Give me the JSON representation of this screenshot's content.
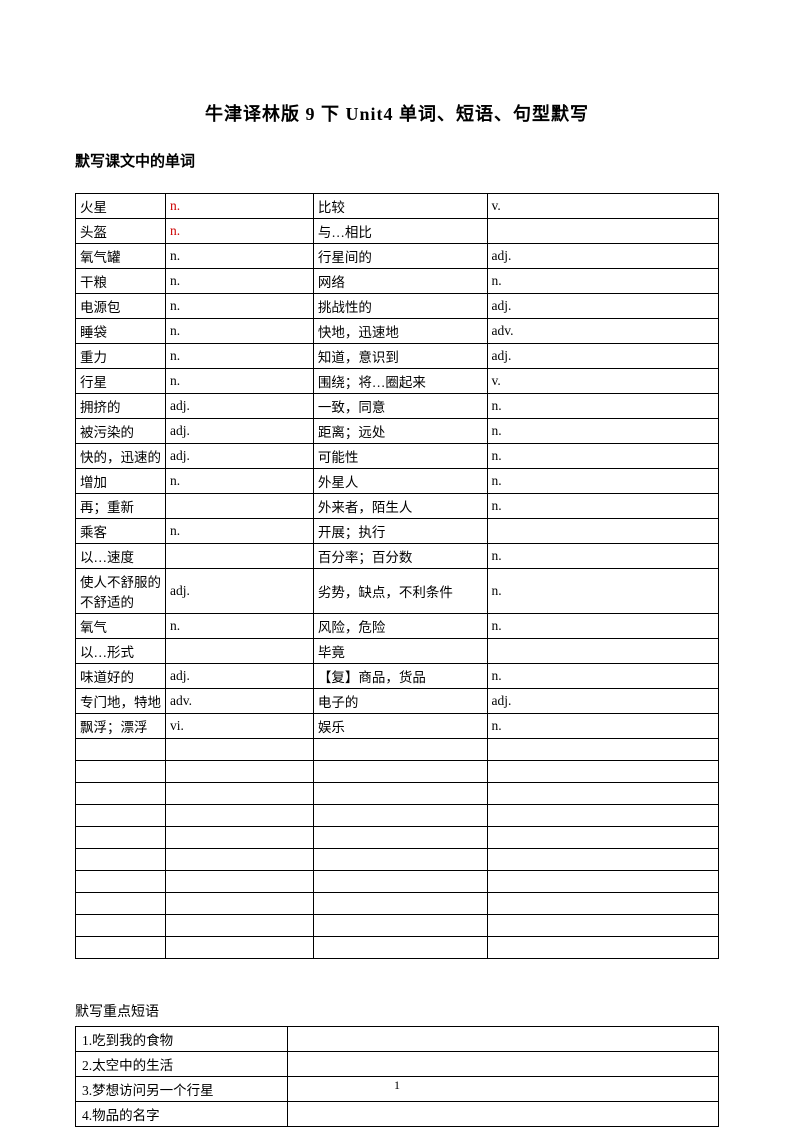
{
  "title": "牛津译林版 9 下 Unit4  单词、短语、句型默写",
  "section1_header": "默写课文中的单词",
  "vocab_rows": [
    {
      "c1": "火星",
      "c2": "n.",
      "c2red": true,
      "c3": "比较",
      "c4": "v."
    },
    {
      "c1": "头盔",
      "c2": "n.",
      "c2red": true,
      "c3": "与…相比",
      "c4": ""
    },
    {
      "c1": "氧气罐",
      "c2": "n.",
      "c3": "行星间的",
      "c4": "adj."
    },
    {
      "c1": "干粮",
      "c2": "n.",
      "c3": "网络",
      "c4": "n."
    },
    {
      "c1": "电源包",
      "c2": "n.",
      "c3": "挑战性的",
      "c4": "adj."
    },
    {
      "c1": "睡袋",
      "c2": "n.",
      "c3": "快地，迅速地",
      "c4": "adv."
    },
    {
      "c1": "重力",
      "c2": "n.",
      "c3": "知道，意识到",
      "c4": "adj."
    },
    {
      "c1": "行星",
      "c2": "n.",
      "c3": "围绕；将…圈起来",
      "c4": "v."
    },
    {
      "c1": "拥挤的",
      "c2": "adj.",
      "c3": "一致，同意",
      "c4": "n."
    },
    {
      "c1": "被污染的",
      "c2": "adj.",
      "c3": "距离；远处",
      "c4": "n."
    },
    {
      "c1": "快的，迅速的",
      "c2": "adj.",
      "c3": "可能性",
      "c4": "n."
    },
    {
      "c1": "增加",
      "c2": "n.",
      "c3": "外星人",
      "c4": "n."
    },
    {
      "c1": "再；重新",
      "c2": "",
      "c3": "外来者，陌生人",
      "c4": "n."
    },
    {
      "c1": "乘客",
      "c2": "n.",
      "c3": "开展；执行",
      "c4": ""
    },
    {
      "c1": "以…速度",
      "c2": "",
      "c3": "百分率；百分数",
      "c4": "n."
    },
    {
      "c1": "使人不舒服的不舒适的",
      "c2": "adj.",
      "c3": "劣势，缺点，不利条件",
      "c4": "n."
    },
    {
      "c1": "氧气",
      "c2": "n.",
      "c3": "风险，危险",
      "c4": "n."
    },
    {
      "c1": "以…形式",
      "c2": "",
      "c3": "毕竟",
      "c4": ""
    },
    {
      "c1": "味道好的",
      "c2": "adj.",
      "c3": "【复】商品，货品",
      "c4": "n."
    },
    {
      "c1": "专门地，特地",
      "c2": "adv.",
      "c3": "电子的",
      "c4": "adj."
    },
    {
      "c1": "飘浮；漂浮",
      "c2": "vi.",
      "c3": "娱乐",
      "c4": "n."
    },
    {
      "c1": "",
      "c2": "",
      "c3": "",
      "c4": ""
    },
    {
      "c1": "",
      "c2": "",
      "c3": "",
      "c4": ""
    },
    {
      "c1": "",
      "c2": "",
      "c3": "",
      "c4": ""
    },
    {
      "c1": "",
      "c2": "",
      "c3": "",
      "c4": ""
    },
    {
      "c1": "",
      "c2": "",
      "c3": "",
      "c4": ""
    },
    {
      "c1": "",
      "c2": "",
      "c3": "",
      "c4": ""
    },
    {
      "c1": "",
      "c2": "",
      "c3": "",
      "c4": ""
    },
    {
      "c1": "",
      "c2": "",
      "c3": "",
      "c4": ""
    },
    {
      "c1": "",
      "c2": "",
      "c3": "",
      "c4": ""
    },
    {
      "c1": "",
      "c2": "",
      "c3": "",
      "c4": ""
    }
  ],
  "phrase_header": "默写重点短语",
  "phrase_rows": [
    {
      "p1": "1.吃到我的食物",
      "p2": ""
    },
    {
      "p1": "2.太空中的生活",
      "p2": ""
    },
    {
      "p1": "3.梦想访问另一个行星",
      "p2": ""
    },
    {
      "p1": "4.物品的名字",
      "p2": ""
    }
  ],
  "page_number": "1"
}
